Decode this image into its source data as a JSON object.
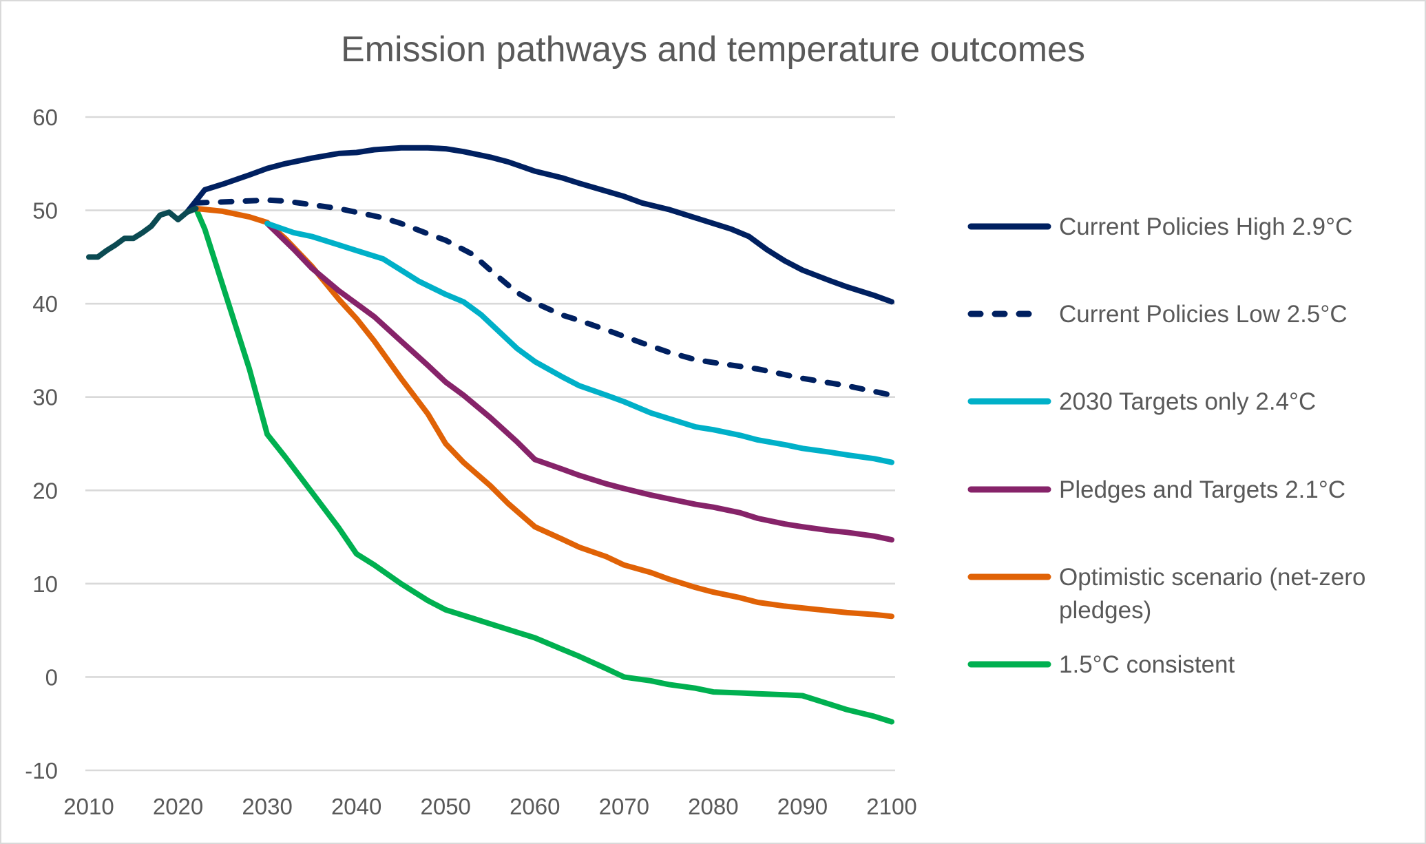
{
  "chart_data": {
    "type": "line",
    "title": "Emission pathways and temperature outcomes",
    "xlabel": "",
    "ylabel": "",
    "xlim": [
      2010,
      2100
    ],
    "ylim": [
      -10,
      60
    ],
    "x_ticks": [
      "2010",
      "2020",
      "2030",
      "2040",
      "2050",
      "2060",
      "2070",
      "2080",
      "2090",
      "2100"
    ],
    "y_ticks": [
      "60",
      "50",
      "40",
      "30",
      "20",
      "10",
      "0",
      "-10"
    ],
    "grid": "horizontal",
    "legend_position": "right",
    "series": [
      {
        "name": "Historical",
        "in_legend": false,
        "color": "#0b4a52",
        "dashed": false,
        "points": [
          [
            2010,
            45
          ],
          [
            2011,
            45
          ],
          [
            2012,
            45.7
          ],
          [
            2013,
            46.3
          ],
          [
            2014,
            47
          ],
          [
            2015,
            47
          ],
          [
            2016,
            47.6
          ],
          [
            2017,
            48.3
          ],
          [
            2018,
            49.5
          ],
          [
            2019,
            49.8
          ],
          [
            2020,
            49
          ],
          [
            2021,
            49.8
          ],
          [
            2022,
            50.2
          ]
        ]
      },
      {
        "name": "Current Policies High 2.9°C",
        "in_legend": true,
        "color": "#002060",
        "dashed": false,
        "points": [
          [
            2021,
            49.8
          ],
          [
            2022,
            51
          ],
          [
            2023,
            52.2
          ],
          [
            2025,
            52.8
          ],
          [
            2028,
            53.8
          ],
          [
            2030,
            54.5
          ],
          [
            2032,
            55
          ],
          [
            2035,
            55.6
          ],
          [
            2038,
            56.1
          ],
          [
            2040,
            56.2
          ],
          [
            2042,
            56.5
          ],
          [
            2045,
            56.7
          ],
          [
            2048,
            56.7
          ],
          [
            2050,
            56.6
          ],
          [
            2052,
            56.3
          ],
          [
            2055,
            55.7
          ],
          [
            2057,
            55.2
          ],
          [
            2060,
            54.2
          ],
          [
            2063,
            53.5
          ],
          [
            2065,
            52.9
          ],
          [
            2070,
            51.5
          ],
          [
            2072,
            50.8
          ],
          [
            2075,
            50.1
          ],
          [
            2078,
            49.2
          ],
          [
            2080,
            48.6
          ],
          [
            2082,
            48
          ],
          [
            2084,
            47.2
          ],
          [
            2086,
            45.8
          ],
          [
            2088,
            44.6
          ],
          [
            2090,
            43.6
          ],
          [
            2093,
            42.5
          ],
          [
            2095,
            41.8
          ],
          [
            2098,
            40.9
          ],
          [
            2100,
            40.2
          ]
        ]
      },
      {
        "name": "Current Policies Low 2.5°C",
        "in_legend": true,
        "color": "#002060",
        "dashed": true,
        "points": [
          [
            2022,
            50.8
          ],
          [
            2025,
            50.9
          ],
          [
            2030,
            51.1
          ],
          [
            2032,
            51
          ],
          [
            2035,
            50.6
          ],
          [
            2038,
            50.2
          ],
          [
            2040,
            49.8
          ],
          [
            2043,
            49.2
          ],
          [
            2045,
            48.6
          ],
          [
            2048,
            47.5
          ],
          [
            2050,
            46.8
          ],
          [
            2052,
            45.8
          ],
          [
            2053,
            45.3
          ],
          [
            2055,
            43.6
          ],
          [
            2057,
            42
          ],
          [
            2058,
            41.2
          ],
          [
            2060,
            40.1
          ],
          [
            2063,
            38.8
          ],
          [
            2065,
            38.2
          ],
          [
            2068,
            37.2
          ],
          [
            2070,
            36.5
          ],
          [
            2072,
            35.8
          ],
          [
            2075,
            34.8
          ],
          [
            2078,
            34
          ],
          [
            2080,
            33.7
          ],
          [
            2085,
            33
          ],
          [
            2090,
            32
          ],
          [
            2095,
            31.2
          ],
          [
            2100,
            30.2
          ]
        ]
      },
      {
        "name": "2030 Targets only 2.4°C",
        "in_legend": true,
        "color": "#00b0c8",
        "dashed": false,
        "points": [
          [
            2030,
            48.6
          ],
          [
            2033,
            47.6
          ],
          [
            2035,
            47.2
          ],
          [
            2038,
            46.3
          ],
          [
            2040,
            45.7
          ],
          [
            2043,
            44.8
          ],
          [
            2045,
            43.6
          ],
          [
            2047,
            42.4
          ],
          [
            2050,
            41
          ],
          [
            2052,
            40.2
          ],
          [
            2054,
            38.8
          ],
          [
            2056,
            37
          ],
          [
            2058,
            35.2
          ],
          [
            2060,
            33.8
          ],
          [
            2063,
            32.2
          ],
          [
            2065,
            31.2
          ],
          [
            2068,
            30.2
          ],
          [
            2070,
            29.5
          ],
          [
            2073,
            28.3
          ],
          [
            2075,
            27.7
          ],
          [
            2078,
            26.8
          ],
          [
            2080,
            26.5
          ],
          [
            2083,
            25.9
          ],
          [
            2085,
            25.4
          ],
          [
            2088,
            24.9
          ],
          [
            2090,
            24.5
          ],
          [
            2093,
            24.1
          ],
          [
            2095,
            23.8
          ],
          [
            2098,
            23.4
          ],
          [
            2100,
            23
          ]
        ]
      },
      {
        "name": "Pledges and Targets 2.1°C",
        "in_legend": true,
        "color": "#862369",
        "dashed": false,
        "points": [
          [
            2030,
            48.6
          ],
          [
            2033,
            45.8
          ],
          [
            2035,
            43.8
          ],
          [
            2038,
            41.4
          ],
          [
            2040,
            40
          ],
          [
            2042,
            38.6
          ],
          [
            2045,
            36
          ],
          [
            2048,
            33.4
          ],
          [
            2050,
            31.6
          ],
          [
            2052,
            30.2
          ],
          [
            2055,
            27.8
          ],
          [
            2058,
            25.2
          ],
          [
            2060,
            23.3
          ],
          [
            2063,
            22.3
          ],
          [
            2065,
            21.6
          ],
          [
            2068,
            20.7
          ],
          [
            2070,
            20.2
          ],
          [
            2073,
            19.5
          ],
          [
            2075,
            19.1
          ],
          [
            2078,
            18.5
          ],
          [
            2080,
            18.2
          ],
          [
            2083,
            17.6
          ],
          [
            2085,
            17
          ],
          [
            2088,
            16.4
          ],
          [
            2090,
            16.1
          ],
          [
            2093,
            15.7
          ],
          [
            2095,
            15.5
          ],
          [
            2098,
            15.1
          ],
          [
            2100,
            14.7
          ]
        ]
      },
      {
        "name": "Optimistic scenario (net-zero pledges)",
        "legend_lines": [
          "Optimistic scenario (net-zero",
          "pledges)"
        ],
        "in_legend": true,
        "color": "#e06206",
        "dashed": false,
        "points": [
          [
            2022,
            50.2
          ],
          [
            2025,
            49.9
          ],
          [
            2028,
            49.3
          ],
          [
            2030,
            48.7
          ],
          [
            2032,
            47
          ],
          [
            2035,
            44
          ],
          [
            2038,
            40.5
          ],
          [
            2040,
            38.4
          ],
          [
            2042,
            36
          ],
          [
            2045,
            32
          ],
          [
            2048,
            28.2
          ],
          [
            2050,
            25
          ],
          [
            2052,
            23
          ],
          [
            2055,
            20.5
          ],
          [
            2057,
            18.6
          ],
          [
            2060,
            16.1
          ],
          [
            2063,
            14.8
          ],
          [
            2065,
            13.9
          ],
          [
            2068,
            12.9
          ],
          [
            2070,
            12
          ],
          [
            2073,
            11.2
          ],
          [
            2075,
            10.5
          ],
          [
            2078,
            9.6
          ],
          [
            2080,
            9.1
          ],
          [
            2083,
            8.5
          ],
          [
            2085,
            8
          ],
          [
            2088,
            7.6
          ],
          [
            2090,
            7.4
          ],
          [
            2093,
            7.1
          ],
          [
            2095,
            6.9
          ],
          [
            2098,
            6.7
          ],
          [
            2100,
            6.5
          ]
        ]
      },
      {
        "name": "1.5°C consistent",
        "in_legend": true,
        "color": "#00b050",
        "dashed": false,
        "points": [
          [
            2022,
            50.2
          ],
          [
            2023,
            48
          ],
          [
            2025,
            42
          ],
          [
            2028,
            33
          ],
          [
            2030,
            26
          ],
          [
            2032,
            23.6
          ],
          [
            2035,
            19.8
          ],
          [
            2038,
            16
          ],
          [
            2040,
            13.2
          ],
          [
            2042,
            12
          ],
          [
            2045,
            10
          ],
          [
            2048,
            8.2
          ],
          [
            2050,
            7.2
          ],
          [
            2053,
            6.3
          ],
          [
            2055,
            5.7
          ],
          [
            2058,
            4.8
          ],
          [
            2060,
            4.2
          ],
          [
            2063,
            3
          ],
          [
            2065,
            2.2
          ],
          [
            2068,
            0.9
          ],
          [
            2070,
            0
          ],
          [
            2073,
            -0.4
          ],
          [
            2075,
            -0.8
          ],
          [
            2078,
            -1.2
          ],
          [
            2080,
            -1.6
          ],
          [
            2083,
            -1.7
          ],
          [
            2085,
            -1.8
          ],
          [
            2088,
            -1.9
          ],
          [
            2090,
            -2
          ],
          [
            2093,
            -2.9
          ],
          [
            2095,
            -3.5
          ],
          [
            2098,
            -4.2
          ],
          [
            2100,
            -4.8
          ]
        ]
      }
    ]
  }
}
